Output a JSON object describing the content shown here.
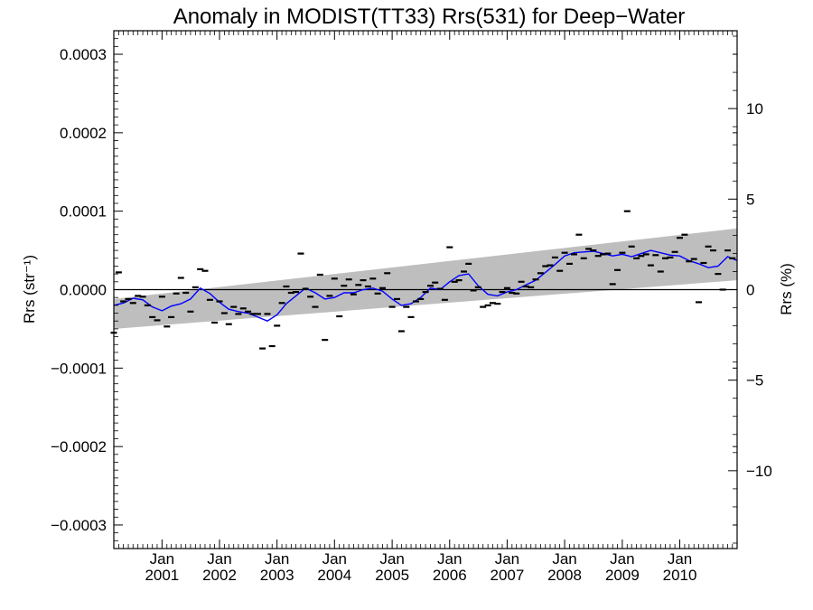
{
  "chart_data": {
    "type": "scatter",
    "title": "Anomaly in MODIST(TT33) Rrs(531) for Deep−Water",
    "ylabel_left": "Rrs (str⁻¹)",
    "ylabel_right": "Rrs (%)",
    "x_range": [
      "2000-03-01",
      "2010-12-31"
    ],
    "ylim_left": [
      -0.00033,
      0.00033
    ],
    "ylim_right": [
      -14.3,
      14.3
    ],
    "left_ticks": [
      {
        "value": 0.0003,
        "label": "0.0003"
      },
      {
        "value": 0.0002,
        "label": "0.0002"
      },
      {
        "value": 0.0001,
        "label": "0.0001"
      },
      {
        "value": 0.0,
        "label": "0.0000"
      },
      {
        "value": -0.0001,
        "label": "−0.0001"
      },
      {
        "value": -0.0002,
        "label": "−0.0002"
      },
      {
        "value": -0.0003,
        "label": "−0.0003"
      }
    ],
    "right_ticks": [
      {
        "value": 10,
        "label": "10"
      },
      {
        "value": 5,
        "label": "5"
      },
      {
        "value": 0,
        "label": "0"
      },
      {
        "value": -5,
        "label": "−5"
      },
      {
        "value": -10,
        "label": "−10"
      }
    ],
    "x_ticks": [
      {
        "date": "2001-01-01",
        "line1": "Jan",
        "line2": "2001"
      },
      {
        "date": "2002-01-01",
        "line1": "Jan",
        "line2": "2002"
      },
      {
        "date": "2003-01-01",
        "line1": "Jan",
        "line2": "2003"
      },
      {
        "date": "2004-01-01",
        "line1": "Jan",
        "line2": "2004"
      },
      {
        "date": "2005-01-01",
        "line1": "Jan",
        "line2": "2005"
      },
      {
        "date": "2006-01-01",
        "line1": "Jan",
        "line2": "2006"
      },
      {
        "date": "2007-01-01",
        "line1": "Jan",
        "line2": "2007"
      },
      {
        "date": "2008-01-01",
        "line1": "Jan",
        "line2": "2008"
      },
      {
        "date": "2009-01-01",
        "line1": "Jan",
        "line2": "2009"
      },
      {
        "date": "2010-01-01",
        "line1": "Jan",
        "line2": "2010"
      }
    ],
    "series": [
      {
        "type": "scatter",
        "color": "#000000",
        "points": [
          {
            "x": "2000-03-01",
            "y": -5.5e-05
          },
          {
            "x": "2000-04-01",
            "y": 2.2e-05
          },
          {
            "x": "2000-05-01",
            "y": -1.5e-05
          },
          {
            "x": "2000-06-01",
            "y": -1.2e-05
          },
          {
            "x": "2000-07-01",
            "y": -1.7e-05
          },
          {
            "x": "2000-08-01",
            "y": -8e-06
          },
          {
            "x": "2000-09-01",
            "y": -9e-06
          },
          {
            "x": "2000-10-01",
            "y": -2e-05
          },
          {
            "x": "2000-11-01",
            "y": -3.5e-05
          },
          {
            "x": "2000-12-01",
            "y": -3.9e-05
          },
          {
            "x": "2001-01-01",
            "y": -9e-06
          },
          {
            "x": "2001-02-01",
            "y": -4.7e-05
          },
          {
            "x": "2001-03-01",
            "y": -3.5e-05
          },
          {
            "x": "2001-04-01",
            "y": -5e-06
          },
          {
            "x": "2001-05-01",
            "y": 1.5e-05
          },
          {
            "x": "2001-06-01",
            "y": -4e-06
          },
          {
            "x": "2001-07-01",
            "y": -2.8e-05
          },
          {
            "x": "2001-08-01",
            "y": 3e-06
          },
          {
            "x": "2001-09-01",
            "y": 2.6e-05
          },
          {
            "x": "2001-10-01",
            "y": 2.4e-05
          },
          {
            "x": "2001-11-01",
            "y": -1.3e-05
          },
          {
            "x": "2001-12-01",
            "y": -4.2e-05
          },
          {
            "x": "2002-01-01",
            "y": -1.5e-05
          },
          {
            "x": "2002-02-01",
            "y": -3e-05
          },
          {
            "x": "2002-03-01",
            "y": -4.4e-05
          },
          {
            "x": "2002-04-01",
            "y": -2.2e-05
          },
          {
            "x": "2002-05-01",
            "y": -3.1e-05
          },
          {
            "x": "2002-06-01",
            "y": -2.4e-05
          },
          {
            "x": "2002-07-01",
            "y": -2.8e-05
          },
          {
            "x": "2002-08-01",
            "y": -3.1e-05
          },
          {
            "x": "2002-09-01",
            "y": -3.1e-05
          },
          {
            "x": "2002-10-01",
            "y": -7.5e-05
          },
          {
            "x": "2002-11-01",
            "y": -3.1e-05
          },
          {
            "x": "2002-12-01",
            "y": -7.2e-05
          },
          {
            "x": "2003-01-01",
            "y": -4.6e-05
          },
          {
            "x": "2003-02-01",
            "y": -1.7e-05
          },
          {
            "x": "2003-03-01",
            "y": 4e-06
          },
          {
            "x": "2003-04-01",
            "y": -4e-06
          },
          {
            "x": "2003-05-01",
            "y": -3e-06
          },
          {
            "x": "2003-06-01",
            "y": 4.6e-05
          },
          {
            "x": "2003-07-01",
            "y": 1e-06
          },
          {
            "x": "2003-08-01",
            "y": -9e-06
          },
          {
            "x": "2003-09-01",
            "y": -2.2e-05
          },
          {
            "x": "2003-10-01",
            "y": 1.9e-05
          },
          {
            "x": "2003-11-01",
            "y": -6.4e-05
          },
          {
            "x": "2003-12-01",
            "y": -8e-06
          },
          {
            "x": "2004-01-01",
            "y": 1.4e-05
          },
          {
            "x": "2004-02-01",
            "y": -3.4e-05
          },
          {
            "x": "2004-03-01",
            "y": 5e-06
          },
          {
            "x": "2004-04-01",
            "y": 1.3e-05
          },
          {
            "x": "2004-05-01",
            "y": -6e-06
          },
          {
            "x": "2004-06-01",
            "y": 6e-06
          },
          {
            "x": "2004-07-01",
            "y": 1.2e-05
          },
          {
            "x": "2004-08-01",
            "y": 4e-06
          },
          {
            "x": "2004-09-01",
            "y": 1.4e-05
          },
          {
            "x": "2004-10-01",
            "y": -5e-06
          },
          {
            "x": "2004-11-01",
            "y": 2e-06
          },
          {
            "x": "2004-12-01",
            "y": 2.1e-05
          },
          {
            "x": "2005-01-01",
            "y": -2.2e-05
          },
          {
            "x": "2005-02-01",
            "y": -1.2e-05
          },
          {
            "x": "2005-03-01",
            "y": -5.3e-05
          },
          {
            "x": "2005-04-01",
            "y": -2.2e-05
          },
          {
            "x": "2005-05-01",
            "y": -3.5e-05
          },
          {
            "x": "2005-06-01",
            "y": -1.5e-05
          },
          {
            "x": "2005-07-01",
            "y": -1.2e-05
          },
          {
            "x": "2005-08-01",
            "y": -3e-06
          },
          {
            "x": "2005-09-01",
            "y": 5e-06
          },
          {
            "x": "2005-10-01",
            "y": 9e-06
          },
          {
            "x": "2005-11-01",
            "y": 1e-06
          },
          {
            "x": "2005-12-01",
            "y": -1.3e-05
          },
          {
            "x": "2006-01-01",
            "y": 5.4e-05
          },
          {
            "x": "2006-02-01",
            "y": 1e-05
          },
          {
            "x": "2006-03-01",
            "y": 1.2e-05
          },
          {
            "x": "2006-04-01",
            "y": 2.3e-05
          },
          {
            "x": "2006-05-01",
            "y": 3.3e-05
          },
          {
            "x": "2006-06-01",
            "y": -1e-06
          },
          {
            "x": "2006-07-01",
            "y": 3e-06
          },
          {
            "x": "2006-08-01",
            "y": -2.2e-05
          },
          {
            "x": "2006-09-01",
            "y": -2e-05
          },
          {
            "x": "2006-10-01",
            "y": -1.7e-05
          },
          {
            "x": "2006-11-01",
            "y": -1.8e-05
          },
          {
            "x": "2006-12-01",
            "y": -3e-06
          },
          {
            "x": "2007-01-01",
            "y": 2e-06
          },
          {
            "x": "2007-02-01",
            "y": -4e-06
          },
          {
            "x": "2007-03-01",
            "y": -5e-06
          },
          {
            "x": "2007-04-01",
            "y": 1e-05
          },
          {
            "x": "2007-05-01",
            "y": 4e-06
          },
          {
            "x": "2007-06-01",
            "y": 3e-06
          },
          {
            "x": "2007-07-01",
            "y": 1.3e-05
          },
          {
            "x": "2007-08-01",
            "y": 2.1e-05
          },
          {
            "x": "2007-09-01",
            "y": 3e-05
          },
          {
            "x": "2007-10-01",
            "y": 3.1e-05
          },
          {
            "x": "2007-11-01",
            "y": 4.1e-05
          },
          {
            "x": "2007-12-01",
            "y": 2.4e-05
          },
          {
            "x": "2008-01-01",
            "y": 4.7e-05
          },
          {
            "x": "2008-02-01",
            "y": 3.3e-05
          },
          {
            "x": "2008-03-01",
            "y": 4.5e-05
          },
          {
            "x": "2008-04-01",
            "y": 7e-05
          },
          {
            "x": "2008-05-01",
            "y": 4e-05
          },
          {
            "x": "2008-06-01",
            "y": 5.2e-05
          },
          {
            "x": "2008-07-01",
            "y": 5e-05
          },
          {
            "x": "2008-08-01",
            "y": 4.3e-05
          },
          {
            "x": "2008-09-01",
            "y": 4.5e-05
          },
          {
            "x": "2008-10-01",
            "y": 4.6e-05
          },
          {
            "x": "2008-11-01",
            "y": 7e-06
          },
          {
            "x": "2008-12-01",
            "y": 2.5e-05
          },
          {
            "x": "2009-01-01",
            "y": 4.7e-05
          },
          {
            "x": "2009-02-01",
            "y": 0.0001
          },
          {
            "x": "2009-03-01",
            "y": 5.5e-05
          },
          {
            "x": "2009-04-01",
            "y": 4e-05
          },
          {
            "x": "2009-05-01",
            "y": 4.3e-05
          },
          {
            "x": "2009-06-01",
            "y": 4.5e-05
          },
          {
            "x": "2009-07-01",
            "y": 3.1e-05
          },
          {
            "x": "2009-08-01",
            "y": 4.4e-05
          },
          {
            "x": "2009-09-01",
            "y": 2.3e-05
          },
          {
            "x": "2009-10-01",
            "y": 4e-05
          },
          {
            "x": "2009-11-01",
            "y": 4.1e-05
          },
          {
            "x": "2009-12-01",
            "y": 4.8e-05
          },
          {
            "x": "2010-01-01",
            "y": 6.6e-05
          },
          {
            "x": "2010-02-01",
            "y": 7e-05
          },
          {
            "x": "2010-03-01",
            "y": 3.6e-05
          },
          {
            "x": "2010-04-01",
            "y": 3.9e-05
          },
          {
            "x": "2010-05-01",
            "y": -1.6e-05
          },
          {
            "x": "2010-06-01",
            "y": 3.4e-05
          },
          {
            "x": "2010-07-01",
            "y": 5.5e-05
          },
          {
            "x": "2010-08-01",
            "y": 5e-05
          },
          {
            "x": "2010-09-01",
            "y": 2e-05
          },
          {
            "x": "2010-10-01",
            "y": 0.0
          },
          {
            "x": "2010-11-01",
            "y": 5e-05
          },
          {
            "x": "2010-12-01",
            "y": 4e-05
          }
        ]
      },
      {
        "type": "line",
        "color": "#0000ff",
        "points": [
          {
            "x": "2000-03-01",
            "y": -2e-05
          },
          {
            "x": "2000-05-01",
            "y": -1.7e-05
          },
          {
            "x": "2000-07-01",
            "y": -1.1e-05
          },
          {
            "x": "2000-09-01",
            "y": -1.3e-05
          },
          {
            "x": "2000-11-01",
            "y": -2.2e-05
          },
          {
            "x": "2001-01-01",
            "y": -2.7e-05
          },
          {
            "x": "2001-03-01",
            "y": -2.1e-05
          },
          {
            "x": "2001-05-01",
            "y": -1.8e-05
          },
          {
            "x": "2001-07-01",
            "y": -1.2e-05
          },
          {
            "x": "2001-09-01",
            "y": 2e-06
          },
          {
            "x": "2001-11-01",
            "y": -5e-06
          },
          {
            "x": "2002-01-01",
            "y": -1.6e-05
          },
          {
            "x": "2002-03-01",
            "y": -2.5e-05
          },
          {
            "x": "2002-05-01",
            "y": -2.8e-05
          },
          {
            "x": "2002-07-01",
            "y": -3e-05
          },
          {
            "x": "2002-09-01",
            "y": -3.5e-05
          },
          {
            "x": "2002-11-01",
            "y": -4e-05
          },
          {
            "x": "2003-01-01",
            "y": -3.2e-05
          },
          {
            "x": "2003-03-01",
            "y": -1.8e-05
          },
          {
            "x": "2003-05-01",
            "y": -8e-06
          },
          {
            "x": "2003-07-01",
            "y": 2e-06
          },
          {
            "x": "2003-09-01",
            "y": -4e-06
          },
          {
            "x": "2003-11-01",
            "y": -1.2e-05
          },
          {
            "x": "2004-01-01",
            "y": -1e-05
          },
          {
            "x": "2004-03-01",
            "y": -4e-06
          },
          {
            "x": "2004-05-01",
            "y": -4e-06
          },
          {
            "x": "2004-07-01",
            "y": 0.0
          },
          {
            "x": "2004-09-01",
            "y": 2e-06
          },
          {
            "x": "2004-11-01",
            "y": -2e-06
          },
          {
            "x": "2005-01-01",
            "y": -1.2e-05
          },
          {
            "x": "2005-03-01",
            "y": -2e-05
          },
          {
            "x": "2005-05-01",
            "y": -1.8e-05
          },
          {
            "x": "2005-07-01",
            "y": -1e-05
          },
          {
            "x": "2005-09-01",
            "y": 2e-06
          },
          {
            "x": "2005-11-01",
            "y": 0.0
          },
          {
            "x": "2006-01-01",
            "y": 1e-05
          },
          {
            "x": "2006-03-01",
            "y": 1.8e-05
          },
          {
            "x": "2006-05-01",
            "y": 2e-05
          },
          {
            "x": "2006-07-01",
            "y": 5e-06
          },
          {
            "x": "2006-09-01",
            "y": -6e-06
          },
          {
            "x": "2006-11-01",
            "y": -8e-06
          },
          {
            "x": "2007-01-01",
            "y": -3e-06
          },
          {
            "x": "2007-03-01",
            "y": 0.0
          },
          {
            "x": "2007-05-01",
            "y": 6e-06
          },
          {
            "x": "2007-07-01",
            "y": 1.2e-05
          },
          {
            "x": "2007-09-01",
            "y": 2.2e-05
          },
          {
            "x": "2007-11-01",
            "y": 3.2e-05
          },
          {
            "x": "2008-01-01",
            "y": 4.3e-05
          },
          {
            "x": "2008-03-01",
            "y": 4.7e-05
          },
          {
            "x": "2008-05-01",
            "y": 4.8e-05
          },
          {
            "x": "2008-07-01",
            "y": 4.9e-05
          },
          {
            "x": "2008-09-01",
            "y": 4.6e-05
          },
          {
            "x": "2008-11-01",
            "y": 4.3e-05
          },
          {
            "x": "2009-01-01",
            "y": 4.5e-05
          },
          {
            "x": "2009-03-01",
            "y": 4.2e-05
          },
          {
            "x": "2009-05-01",
            "y": 4.6e-05
          },
          {
            "x": "2009-07-01",
            "y": 5e-05
          },
          {
            "x": "2009-09-01",
            "y": 4.7e-05
          },
          {
            "x": "2009-11-01",
            "y": 4.4e-05
          },
          {
            "x": "2010-01-01",
            "y": 4.3e-05
          },
          {
            "x": "2010-03-01",
            "y": 3.7e-05
          },
          {
            "x": "2010-05-01",
            "y": 3.3e-05
          },
          {
            "x": "2010-07-01",
            "y": 2.8e-05
          },
          {
            "x": "2010-09-01",
            "y": 3e-05
          },
          {
            "x": "2010-11-01",
            "y": 4.2e-05
          },
          {
            "x": "2010-12-31",
            "y": 3.7e-05
          }
        ]
      },
      {
        "type": "band",
        "color": "#bebebe",
        "start": {
          "x": "2000-03-01",
          "upper": -1.2e-05,
          "lower": -5e-05
        },
        "end": {
          "x": "2010-12-31",
          "upper": 7.8e-05,
          "lower": 1.2e-05
        }
      },
      {
        "type": "reference_line",
        "color": "#000000",
        "y": 0.0
      }
    ]
  }
}
